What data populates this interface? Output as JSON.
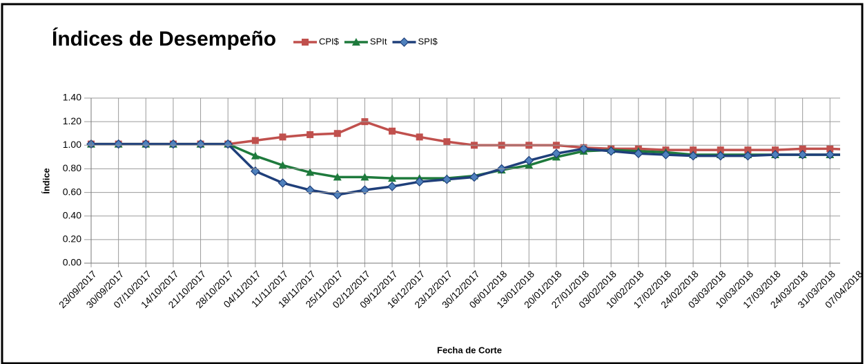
{
  "chart_data": {
    "type": "line",
    "title": "Índices de Desempeño",
    "x_label": "Fecha de Corte",
    "y_label": "Índice",
    "categories": [
      "23/09/2017",
      "30/09/2017",
      "07/10/2017",
      "14/10/2017",
      "21/10/2017",
      "28/10/2017",
      "04/11/2017",
      "11/11/2017",
      "18/11/2017",
      "25/11/2017",
      "02/12/2017",
      "09/12/2017",
      "16/12/2017",
      "23/12/2017",
      "30/12/2017",
      "06/01/2018",
      "13/01/2018",
      "20/01/2018",
      "27/01/2018",
      "03/02/2018",
      "10/02/2018",
      "17/02/2018",
      "24/02/2018",
      "03/03/2018",
      "10/03/2018",
      "17/03/2018",
      "24/03/2018",
      "31/03/2018",
      "07/04/2018"
    ],
    "series": [
      {
        "name": "CPI$",
        "color": "#c0504d",
        "marker": "square",
        "values": [
          1.01,
          1.01,
          1.01,
          1.01,
          1.01,
          1.01,
          1.04,
          1.07,
          1.09,
          1.1,
          1.2,
          1.12,
          1.07,
          1.03,
          1.0,
          1.0,
          1.0,
          1.0,
          0.98,
          0.97,
          0.97,
          0.96,
          0.96,
          0.96,
          0.96,
          0.96,
          0.97,
          0.97,
          0.96
        ]
      },
      {
        "name": "SPIt",
        "color": "#1e7a3c",
        "marker": "triangle",
        "values": [
          1.01,
          1.01,
          1.01,
          1.01,
          1.01,
          1.01,
          0.91,
          0.83,
          0.77,
          0.73,
          0.73,
          0.72,
          0.72,
          0.72,
          0.74,
          0.79,
          0.83,
          0.9,
          0.95,
          0.96,
          0.95,
          0.94,
          0.92,
          0.92,
          0.92,
          0.92,
          0.92,
          0.92,
          0.92
        ]
      },
      {
        "name": "SPI$",
        "color": "#1f3f7a",
        "marker": "diamond",
        "values": [
          1.01,
          1.01,
          1.01,
          1.01,
          1.01,
          1.01,
          0.78,
          0.68,
          0.62,
          0.58,
          0.62,
          0.65,
          0.69,
          0.71,
          0.73,
          0.8,
          0.87,
          0.93,
          0.97,
          0.95,
          0.93,
          0.92,
          0.91,
          0.91,
          0.91,
          0.92,
          0.92,
          0.92,
          0.92
        ]
      }
    ],
    "ylim": [
      0,
      1.4
    ],
    "yticks": [
      {
        "value": 0,
        "label": "0.00"
      },
      {
        "value": 0.2,
        "label": "0.20"
      },
      {
        "value": 0.4,
        "label": "0.40"
      },
      {
        "value": 0.6,
        "label": "0.60"
      },
      {
        "value": 0.8,
        "label": "0.80"
      },
      {
        "value": 1,
        "label": "1.00"
      },
      {
        "value": 1.2,
        "label": "1.20"
      },
      {
        "value": 1.4,
        "label": "1.40"
      }
    ],
    "grid": true
  }
}
